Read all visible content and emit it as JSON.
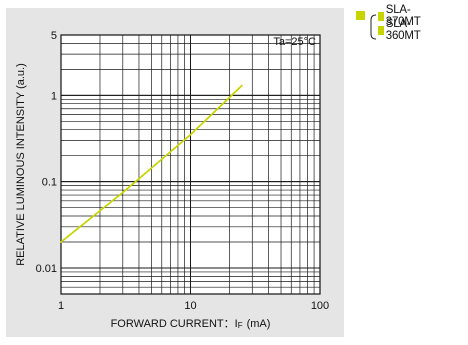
{
  "chart_data": {
    "type": "line",
    "condition": "Ta=25°C",
    "xlabel": "FORWARD CURRENT : IF (mA)",
    "xlabel_main": "FORWARD CURRENT：I",
    "xlabel_sub": "F",
    "xlabel_unit": "(mA)",
    "ylabel": "RELATIVE LUMINOUS INTENSITY (a.u.)",
    "xscale": "log",
    "yscale": "log",
    "xlim": [
      1,
      100
    ],
    "ylim": [
      0.005,
      5
    ],
    "xticks": [
      1,
      10,
      100
    ],
    "xtick_labels": [
      "1",
      "10",
      "100"
    ],
    "yticks": [
      0.01,
      0.1,
      1,
      5
    ],
    "ytick_labels": [
      "0.01",
      "0.1",
      "1",
      "5"
    ],
    "grid": true,
    "series": [
      {
        "name": "SLA-370MT",
        "color": "#c8d400",
        "style": "solid",
        "x": [
          1,
          3,
          10,
          25
        ],
        "y": [
          0.02,
          0.075,
          0.35,
          1.3
        ]
      },
      {
        "name": "SLA-360MT",
        "color": "#c8d400",
        "style": "dashed",
        "x": [
          1,
          3,
          10,
          25
        ],
        "y": [
          0.02,
          0.075,
          0.35,
          1.3
        ]
      }
    ],
    "legend": {
      "placement": "top-right-outside",
      "swatch_color": "#c8d400",
      "entries": [
        "SLA-370MT",
        "SLA-360MT"
      ]
    }
  }
}
